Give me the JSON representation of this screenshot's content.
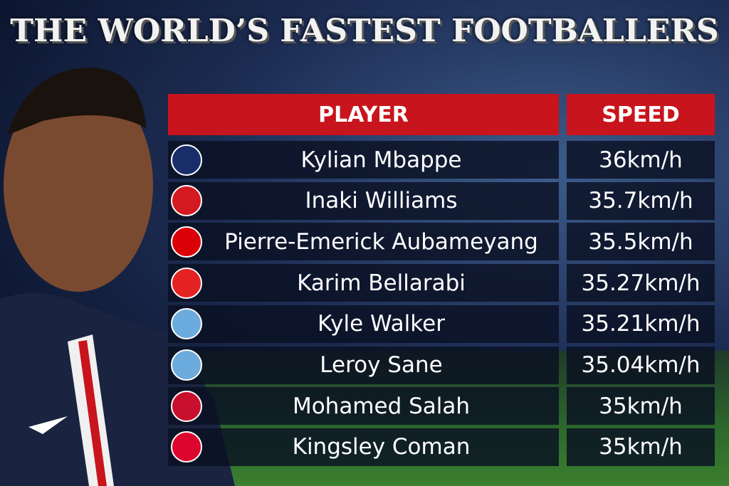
{
  "header": {
    "title": "THE WORLD’S FASTEST FOOTBALLERS"
  },
  "table": {
    "columns": [
      "PLAYER",
      "SPEED"
    ],
    "rows": [
      [
        "Kylian Mbappe",
        "36km/h"
      ],
      [
        "Inaki Williams",
        "35.7km/h"
      ],
      [
        "Pierre-Emerick Aubameyang",
        "35.5km/h"
      ],
      [
        "Karim Bellarabi",
        "35.27km/h"
      ],
      [
        "Kyle Walker",
        "35.21km/h"
      ],
      [
        "Leroy Sane",
        "35.04km/h"
      ],
      [
        "Mohamed Salah",
        "35km/h"
      ],
      [
        "Kingsley Coman",
        "35km/h"
      ]
    ]
  }
}
